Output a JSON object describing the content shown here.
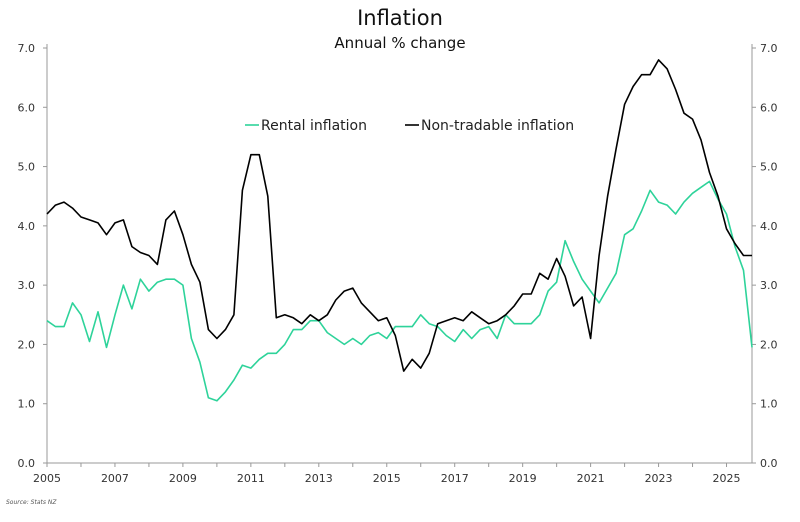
{
  "chart_data": {
    "type": "line",
    "title": "Inflation",
    "subtitle": "Annual % change",
    "xlabel": "",
    "ylabel": "",
    "ylim": [
      0,
      7
    ],
    "xlim": [
      2005,
      2025.75
    ],
    "x_start": 2005,
    "x_step": 0.25,
    "xticks": [
      "2005",
      "2007",
      "2009",
      "2011",
      "2013",
      "2015",
      "2017",
      "2019",
      "2021",
      "2023",
      "2025"
    ],
    "yticks": [
      "0.0",
      "1.0",
      "2.0",
      "3.0",
      "4.0",
      "5.0",
      "6.0",
      "7.0"
    ],
    "legend_position": "top-center",
    "series": [
      {
        "name": "Rental inflation",
        "color": "#2ed39a",
        "values": [
          2.4,
          2.3,
          2.3,
          2.7,
          2.5,
          2.05,
          2.55,
          1.95,
          2.5,
          3.0,
          2.6,
          3.1,
          2.9,
          3.05,
          3.1,
          3.1,
          3.0,
          2.1,
          1.7,
          1.1,
          1.05,
          1.2,
          1.4,
          1.65,
          1.6,
          1.75,
          1.85,
          1.85,
          2.0,
          2.25,
          2.25,
          2.4,
          2.4,
          2.2,
          2.1,
          2.0,
          2.1,
          2.0,
          2.15,
          2.2,
          2.1,
          2.3,
          2.3,
          2.3,
          2.5,
          2.35,
          2.3,
          2.15,
          2.05,
          2.25,
          2.1,
          2.25,
          2.3,
          2.1,
          2.5,
          2.35,
          2.35,
          2.35,
          2.5,
          2.9,
          3.05,
          3.75,
          3.4,
          3.1,
          2.9,
          2.7,
          2.95,
          3.2,
          3.85,
          3.95,
          4.25,
          4.6,
          4.4,
          4.35,
          4.2,
          4.4,
          4.55,
          4.65,
          4.75,
          4.45,
          4.2,
          3.65,
          3.25,
          1.95
        ]
      },
      {
        "name": "Non-tradable inflation",
        "color": "#000000",
        "values": [
          4.2,
          4.35,
          4.4,
          4.3,
          4.15,
          4.1,
          4.05,
          3.85,
          4.05,
          4.1,
          3.65,
          3.55,
          3.5,
          3.35,
          4.1,
          4.25,
          3.85,
          3.35,
          3.05,
          2.25,
          2.1,
          2.25,
          2.5,
          4.6,
          5.2,
          5.2,
          4.5,
          2.45,
          2.5,
          2.45,
          2.35,
          2.5,
          2.4,
          2.5,
          2.75,
          2.9,
          2.95,
          2.7,
          2.55,
          2.4,
          2.45,
          2.15,
          1.55,
          1.75,
          1.6,
          1.85,
          2.35,
          2.4,
          2.45,
          2.4,
          2.55,
          2.45,
          2.35,
          2.4,
          2.5,
          2.65,
          2.85,
          2.85,
          3.2,
          3.1,
          3.45,
          3.15,
          2.65,
          2.8,
          2.1,
          3.5,
          4.5,
          5.3,
          6.05,
          6.35,
          6.55,
          6.55,
          6.8,
          6.65,
          6.3,
          5.9,
          5.8,
          5.45,
          4.9,
          4.5,
          3.95,
          3.7,
          3.5,
          3.5
        ]
      }
    ],
    "source": "Source: Stats NZ"
  }
}
